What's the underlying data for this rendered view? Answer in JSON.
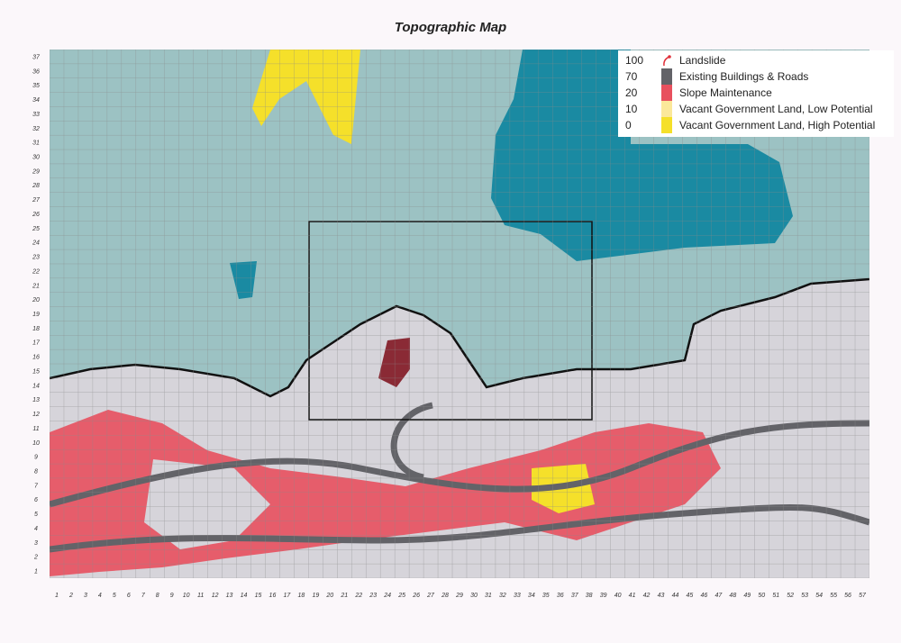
{
  "title": "Topographic Map",
  "grid": {
    "columns": 57,
    "rows": 37
  },
  "legend": [
    {
      "value": "100",
      "label": "Landslide",
      "icon": "landslide-icon",
      "color": "#e0303a"
    },
    {
      "value": "70",
      "label": "Existing Buildings & Roads",
      "color": "#636368"
    },
    {
      "value": "20",
      "label": "Slope Maintenance",
      "color": "#e8505e"
    },
    {
      "value": "10",
      "label": "Vacant Government Land, Low Potential",
      "color": "#fbe89a"
    },
    {
      "value": "0",
      "label": "Vacant Government Land, High Potential",
      "color": "#f5e02a"
    }
  ],
  "colors": {
    "terrain_low": "#d6d4da",
    "terrain_upper": "#9cc2c3",
    "water_area": "#1a8aa2",
    "grid": "#8a8a8a"
  }
}
